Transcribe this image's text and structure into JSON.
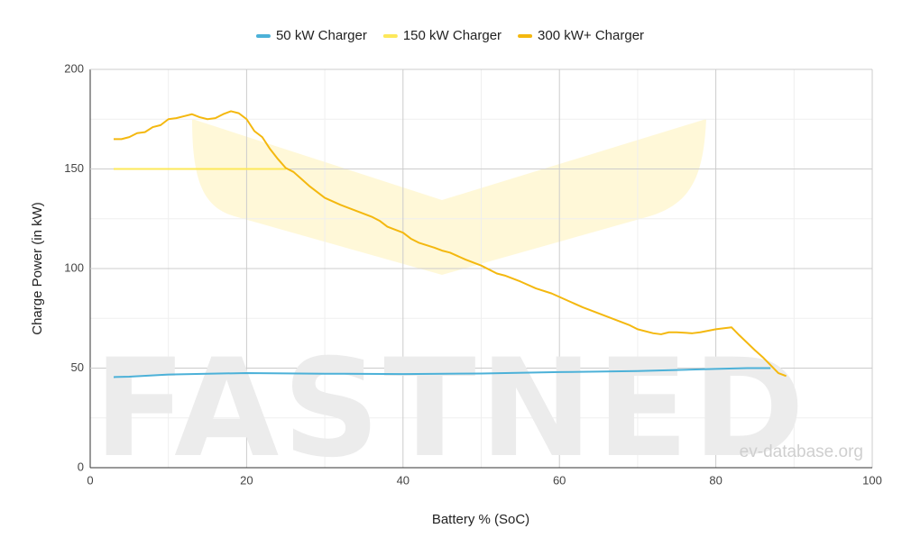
{
  "chart_data": {
    "type": "line",
    "x_label": "Battery % (SoC)",
    "y_label": "Charge Power (in kW)",
    "watermark": "FASTNED",
    "source": "ev-database.org",
    "xlim": [
      0,
      100
    ],
    "xticks": [
      0,
      20,
      40,
      60,
      80,
      100
    ],
    "x_minor_ticks": [
      10,
      30,
      50,
      70,
      90
    ],
    "ylim": [
      0,
      200
    ],
    "yticks": [
      0,
      50,
      100,
      150,
      200
    ],
    "y_minor_ticks": [
      25,
      75,
      125,
      175
    ],
    "grid": true,
    "legend": "top",
    "series": [
      {
        "name": "50 kW Charger",
        "color": "#4cb1d8",
        "x": [
          3,
          5,
          10,
          15,
          20,
          30,
          40,
          50,
          60,
          70,
          80,
          84,
          87
        ],
        "values": [
          45.5,
          45.7,
          46.8,
          47.2,
          47.5,
          47.2,
          47,
          47.3,
          48,
          48.5,
          49.6,
          50,
          50
        ]
      },
      {
        "name": "150 kW Charger",
        "color": "#fde85a",
        "x": [
          3,
          25
        ],
        "values": [
          150,
          150
        ]
      },
      {
        "name": "300 kW+ Charger",
        "color": "#f4b80f",
        "x": [
          3,
          4,
          5,
          6,
          7,
          8,
          9,
          10,
          11,
          12,
          13,
          14,
          15,
          16,
          17,
          18,
          19,
          20,
          21,
          22,
          23,
          24,
          25,
          26,
          27,
          28,
          29,
          30,
          32,
          34,
          36,
          37,
          38,
          40,
          41,
          42,
          44,
          45,
          46,
          48,
          50,
          52,
          53,
          55,
          57,
          59,
          61,
          63,
          65,
          67,
          69,
          70,
          72,
          73,
          74,
          75,
          77,
          78,
          80,
          82,
          83,
          85,
          86,
          87,
          88,
          89
        ],
        "values": [
          165,
          165,
          166,
          168,
          168.5,
          171,
          172,
          175,
          175.5,
          176.5,
          177.5,
          176,
          175,
          175.5,
          177.5,
          179,
          178,
          175,
          169,
          166,
          160,
          155,
          150.5,
          148.5,
          145,
          141.5,
          138.5,
          135.5,
          132,
          129,
          126,
          124,
          121,
          118,
          115,
          113,
          110.5,
          109,
          108,
          104.5,
          101.5,
          97.5,
          96.5,
          93.5,
          90,
          87.5,
          84,
          80.5,
          77.5,
          74.5,
          71.5,
          69.5,
          67.5,
          67,
          68,
          68,
          67.5,
          68,
          69.5,
          70.5,
          66.5,
          59,
          55.5,
          51.5,
          47.5,
          46
        ]
      }
    ]
  }
}
